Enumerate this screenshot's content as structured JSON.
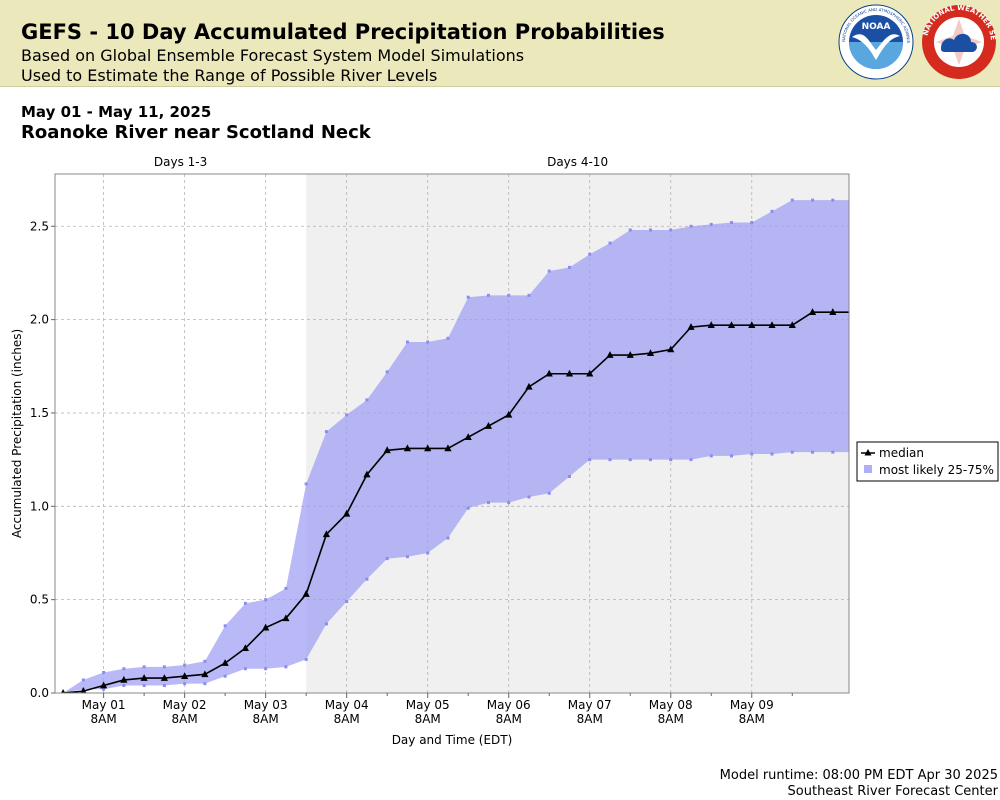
{
  "header": {
    "title": "GEFS - 10 Day Accumulated Precipitation Probabilities",
    "subtitle_1": "Based on Global Ensemble Forecast System Model Simulations",
    "subtitle_2": "Used to Estimate the Range of Possible River Levels",
    "noaa_logo_text": "NOAA",
    "noaa_ring_text": "NATIONAL OCEANIC AND ATMOSPHERIC ADMINISTRATION · U.S. DEPARTMENT OF COMMERCE",
    "nws_logo_text": "NATIONAL WEATHER SERVICE",
    "icons": [
      "noaa-logo-icon",
      "nws-logo-icon"
    ]
  },
  "date_range": "May 01 - May 11, 2025",
  "location": "Roanoke River near Scotland Neck",
  "footer": {
    "runtime": "Model runtime: 08:00 PM EDT Apr 30 2025",
    "center": "Southeast River Forecast Center"
  },
  "chart_data": {
    "type": "area",
    "xlabel": "Day and Time (EDT)",
    "ylabel": "Accumulated Precipitation (inches)",
    "ylim": [
      0,
      2.78
    ],
    "yticks": [
      0.0,
      0.5,
      1.0,
      1.5,
      2.0,
      2.5
    ],
    "ytick_labels": [
      "0.0",
      "0.5",
      "1.0",
      "1.5",
      "2.0",
      "2.5"
    ],
    "xlim": [
      -0.6,
      9.2
    ],
    "xticks": [
      0,
      1,
      2,
      3,
      4,
      5,
      6,
      7,
      8
    ],
    "xtick_labels": [
      [
        "May 01",
        "8AM"
      ],
      [
        "May 02",
        "8AM"
      ],
      [
        "May 03",
        "8AM"
      ],
      [
        "May 04",
        "8AM"
      ],
      [
        "May 05",
        "8AM"
      ],
      [
        "May 06",
        "8AM"
      ],
      [
        "May 07",
        "8AM"
      ],
      [
        "May 08",
        "8AM"
      ],
      [
        "May 09",
        "8AM"
      ]
    ],
    "minor_xticks": [
      0.5,
      1.5,
      2.5,
      3.5,
      4.5,
      5.5,
      6.5,
      7.5,
      8.5
    ],
    "periods": [
      {
        "label": "Days 1-3",
        "start": -0.6,
        "end": 2.5,
        "shaded": false
      },
      {
        "label": "Days 4-10",
        "start": 2.5,
        "end": 9.2,
        "shaded": true
      }
    ],
    "grid": true,
    "legend_position": "right",
    "colors": {
      "band": "#9b9bf5",
      "band_edge": "#8c8cf0",
      "median": "#000000",
      "shade": "#f0f0f0"
    },
    "x": [
      -0.5,
      -0.25,
      0.0,
      0.25,
      0.5,
      0.75,
      1.0,
      1.25,
      1.5,
      1.75,
      2.0,
      2.25,
      2.5,
      2.75,
      3.0,
      3.25,
      3.5,
      3.75,
      4.0,
      4.25,
      4.5,
      4.75,
      5.0,
      5.25,
      5.5,
      5.75,
      6.0,
      6.25,
      6.5,
      6.75,
      7.0,
      7.25,
      7.5,
      7.75,
      8.0,
      8.25,
      8.5,
      8.75,
      9.0,
      9.25
    ],
    "series": [
      {
        "name": "median",
        "style": "line-triangle",
        "values": [
          0.0,
          0.01,
          0.04,
          0.07,
          0.08,
          0.08,
          0.09,
          0.1,
          0.16,
          0.24,
          0.35,
          0.4,
          0.53,
          0.85,
          0.96,
          1.17,
          1.3,
          1.31,
          1.31,
          1.31,
          1.37,
          1.43,
          1.49,
          1.64,
          1.71,
          1.71,
          1.71,
          1.81,
          1.81,
          1.82,
          1.84,
          1.96,
          1.97,
          1.97,
          1.97,
          1.97,
          1.97,
          2.04,
          2.04,
          2.04
        ]
      },
      {
        "name": "most likely 25-75%",
        "style": "band",
        "lower": [
          0.0,
          0.02,
          0.02,
          0.04,
          0.04,
          0.04,
          0.05,
          0.05,
          0.09,
          0.13,
          0.13,
          0.14,
          0.18,
          0.37,
          0.49,
          0.61,
          0.72,
          0.73,
          0.75,
          0.83,
          0.99,
          1.02,
          1.02,
          1.05,
          1.07,
          1.16,
          1.25,
          1.25,
          1.25,
          1.25,
          1.25,
          1.25,
          1.27,
          1.27,
          1.28,
          1.28,
          1.29,
          1.29,
          1.29,
          1.29
        ],
        "upper": [
          0.0,
          0.07,
          0.11,
          0.13,
          0.14,
          0.14,
          0.15,
          0.17,
          0.36,
          0.48,
          0.5,
          0.56,
          1.12,
          1.4,
          1.49,
          1.57,
          1.72,
          1.88,
          1.88,
          1.9,
          2.12,
          2.13,
          2.13,
          2.13,
          2.26,
          2.28,
          2.35,
          2.41,
          2.48,
          2.48,
          2.48,
          2.5,
          2.51,
          2.52,
          2.52,
          2.58,
          2.64,
          2.64,
          2.64,
          2.64
        ]
      }
    ]
  }
}
